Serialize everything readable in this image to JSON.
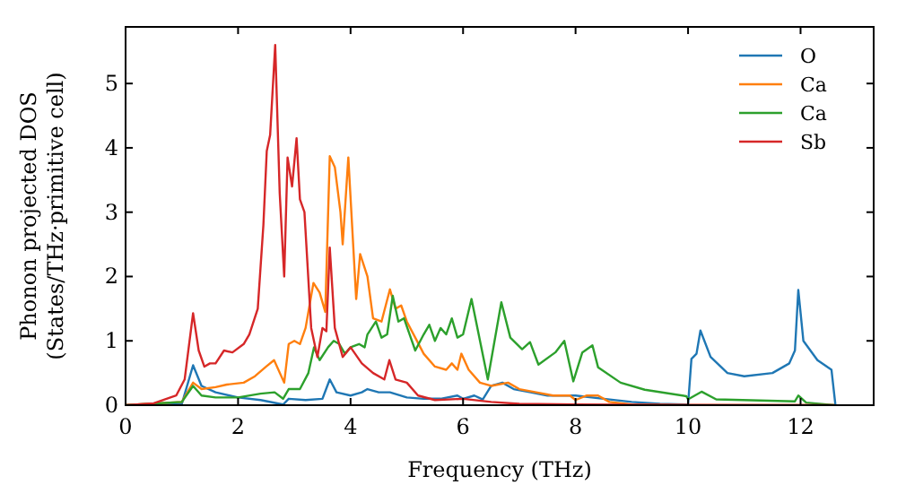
{
  "chart_data": {
    "type": "line",
    "xlabel": "Frequency (THz)",
    "ylabel": "Phonon projected DOS\n(States/THz·primitive cell)",
    "xlim": [
      0,
      13.3
    ],
    "ylim": [
      0,
      5.88
    ],
    "xticks": [
      0,
      2,
      4,
      6,
      8,
      10,
      12
    ],
    "yticks": [
      0,
      1,
      2,
      3,
      4,
      5
    ],
    "legend": "top right",
    "grid": false,
    "series": [
      {
        "name": "O",
        "color": "#1f77b4",
        "x": [
          0,
          1.0,
          1.2,
          1.35,
          1.6,
          2.0,
          2.4,
          2.8,
          2.9,
          3.2,
          3.5,
          3.63,
          3.75,
          4.0,
          4.2,
          4.3,
          4.5,
          4.7,
          5.0,
          5.3,
          5.6,
          5.9,
          6.0,
          6.2,
          6.35,
          6.5,
          6.7,
          6.9,
          7.2,
          7.5,
          8.0,
          8.5,
          9.0,
          9.5,
          10.0,
          10.06,
          10.15,
          10.22,
          10.4,
          10.7,
          11.0,
          11.5,
          11.8,
          11.9,
          11.96,
          12.05,
          12.3,
          12.55,
          12.62
        ],
        "values": [
          0,
          0.02,
          0.62,
          0.3,
          0.2,
          0.12,
          0.08,
          0.01,
          0.1,
          0.08,
          0.1,
          0.4,
          0.2,
          0.15,
          0.2,
          0.25,
          0.2,
          0.2,
          0.12,
          0.1,
          0.1,
          0.15,
          0.1,
          0.15,
          0.09,
          0.3,
          0.35,
          0.25,
          0.2,
          0.15,
          0.15,
          0.1,
          0.05,
          0.02,
          0.01,
          0.72,
          0.8,
          1.16,
          0.75,
          0.5,
          0.45,
          0.5,
          0.65,
          0.85,
          1.79,
          1.0,
          0.7,
          0.55,
          0
        ]
      },
      {
        "name": "Ca",
        "color": "#ff7f0e",
        "x": [
          0,
          1.0,
          1.2,
          1.35,
          1.6,
          1.8,
          2.1,
          2.3,
          2.5,
          2.64,
          2.82,
          2.9,
          3.0,
          3.1,
          3.2,
          3.34,
          3.45,
          3.55,
          3.63,
          3.72,
          3.82,
          3.86,
          3.96,
          4.1,
          4.17,
          4.3,
          4.4,
          4.55,
          4.7,
          4.8,
          4.9,
          5.0,
          5.15,
          5.3,
          5.5,
          5.7,
          5.8,
          5.9,
          5.97,
          6.1,
          6.3,
          6.5,
          6.8,
          7.0,
          7.3,
          7.6,
          7.9,
          8.0,
          8.2,
          8.4,
          8.6,
          9.0,
          10.0,
          12.6
        ],
        "values": [
          0,
          0.05,
          0.35,
          0.25,
          0.28,
          0.32,
          0.35,
          0.45,
          0.6,
          0.7,
          0.35,
          0.95,
          1.0,
          0.95,
          1.2,
          1.9,
          1.75,
          1.45,
          3.87,
          3.7,
          3.0,
          2.5,
          3.85,
          1.65,
          2.35,
          2.0,
          1.35,
          1.3,
          1.8,
          1.5,
          1.55,
          1.3,
          1.05,
          0.8,
          0.6,
          0.55,
          0.65,
          0.55,
          0.8,
          0.55,
          0.35,
          0.3,
          0.35,
          0.25,
          0.2,
          0.15,
          0.15,
          0.08,
          0.15,
          0.15,
          0.05,
          0.01,
          0,
          0
        ]
      },
      {
        "name": "Ca",
        "color": "#2ca02c",
        "x": [
          0,
          1.0,
          1.2,
          1.35,
          1.6,
          2.0,
          2.4,
          2.65,
          2.8,
          2.9,
          3.1,
          3.25,
          3.35,
          3.45,
          3.6,
          3.7,
          3.8,
          3.9,
          4.0,
          4.15,
          4.25,
          4.3,
          4.45,
          4.55,
          4.65,
          4.75,
          4.85,
          4.95,
          5.05,
          5.15,
          5.3,
          5.4,
          5.5,
          5.6,
          5.7,
          5.8,
          5.9,
          6.0,
          6.15,
          6.44,
          6.68,
          6.84,
          7.05,
          7.19,
          7.34,
          7.64,
          7.8,
          7.96,
          8.12,
          8.3,
          8.4,
          8.8,
          9.23,
          9.97,
          10.0,
          10.24,
          10.5,
          11.9,
          11.96,
          12.1,
          12.6
        ],
        "values": [
          0,
          0.05,
          0.3,
          0.15,
          0.12,
          0.12,
          0.18,
          0.2,
          0.1,
          0.25,
          0.25,
          0.5,
          0.9,
          0.7,
          0.9,
          1.0,
          0.95,
          0.8,
          0.9,
          0.95,
          0.9,
          1.1,
          1.3,
          1.05,
          1.1,
          1.7,
          1.3,
          1.35,
          1.1,
          0.85,
          1.1,
          1.25,
          1.0,
          1.2,
          1.1,
          1.35,
          1.05,
          1.1,
          1.65,
          0.4,
          1.6,
          1.05,
          0.87,
          0.98,
          0.63,
          0.82,
          1.0,
          0.37,
          0.82,
          0.93,
          0.59,
          0.35,
          0.24,
          0.14,
          0.09,
          0.21,
          0.09,
          0.06,
          0.15,
          0.04,
          0
        ]
      },
      {
        "name": "Sb",
        "color": "#d62728",
        "x": [
          0,
          0.5,
          0.9,
          1.05,
          1.2,
          1.3,
          1.4,
          1.5,
          1.6,
          1.75,
          1.9,
          2.1,
          2.2,
          2.35,
          2.45,
          2.51,
          2.57,
          2.66,
          2.74,
          2.82,
          2.88,
          2.96,
          3.04,
          3.1,
          3.18,
          3.3,
          3.41,
          3.5,
          3.57,
          3.63,
          3.72,
          3.86,
          4.0,
          4.2,
          4.4,
          4.6,
          4.69,
          4.8,
          5.0,
          5.2,
          5.5,
          6.0,
          6.5,
          7.0,
          8.0,
          12.6
        ],
        "values": [
          0,
          0.03,
          0.15,
          0.4,
          1.43,
          0.85,
          0.6,
          0.65,
          0.65,
          0.85,
          0.82,
          0.95,
          1.1,
          1.5,
          2.8,
          3.95,
          4.2,
          5.6,
          3.3,
          2.0,
          3.85,
          3.4,
          4.15,
          3.2,
          3.0,
          1.2,
          0.75,
          1.2,
          1.15,
          2.45,
          1.2,
          0.75,
          0.9,
          0.65,
          0.5,
          0.4,
          0.7,
          0.4,
          0.35,
          0.15,
          0.08,
          0.1,
          0.05,
          0.02,
          0.01,
          0
        ]
      }
    ]
  }
}
